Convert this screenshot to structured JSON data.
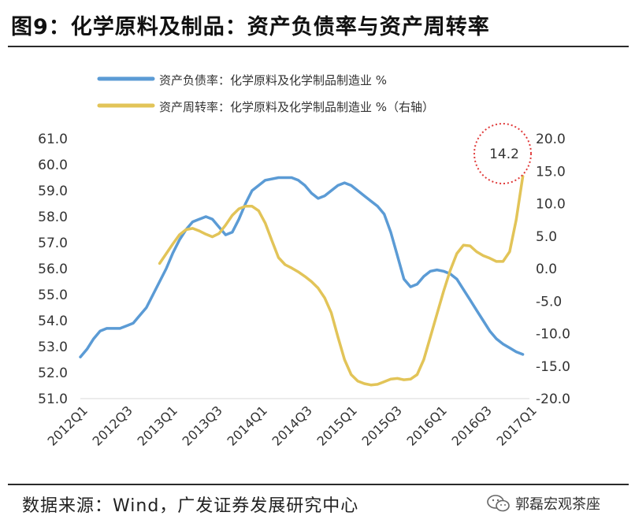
{
  "header": {
    "title": "图9：化学原料及制品：资产负债率与资产周转率"
  },
  "footer": {
    "source": "数据来源：Wind，广发证券发展研究中心",
    "watermark_text": "郭磊宏观茶座",
    "watermark_icon": "wechat-icon"
  },
  "chart_data": {
    "type": "line",
    "legend": [
      "资产负债率：化学原料及化学制品制造业 %",
      "资产周转率：化学原料及化学制品制造业 %（右轴）"
    ],
    "legend_position": "top-left",
    "annotation": "14.2",
    "colors": {
      "left_series": "#5b9bd5",
      "right_series": "#e2c458",
      "annotation_ring": "#e03a3a"
    },
    "x_ticks": [
      "2012Q1",
      "2012Q3",
      "2013Q1",
      "2013Q3",
      "2014Q1",
      "2014Q3",
      "2015Q1",
      "2015Q3",
      "2016Q1",
      "2016Q3",
      "2017Q1"
    ],
    "y_left": {
      "min": 51.0,
      "max": 61.0,
      "ticks": [
        "51.0",
        "52.0",
        "53.0",
        "54.0",
        "55.0",
        "56.0",
        "57.0",
        "58.0",
        "59.0",
        "60.0",
        "61.0"
      ]
    },
    "y_right": {
      "min": -20.0,
      "max": 20.0,
      "ticks": [
        "-20.0",
        "-15.0",
        "-10.0",
        "-5.0",
        "0.0",
        "5.0",
        "10.0",
        "15.0",
        "20.0"
      ]
    },
    "series": [
      {
        "name": "资产负债率：化学原料及化学制品制造业 %",
        "axis": "left",
        "points": [
          [
            0.0,
            52.6
          ],
          [
            0.25,
            52.9
          ],
          [
            0.5,
            53.3
          ],
          [
            0.75,
            53.6
          ],
          [
            1.0,
            53.7
          ],
          [
            1.25,
            53.7
          ],
          [
            1.5,
            53.7
          ],
          [
            1.75,
            53.8
          ],
          [
            2.0,
            53.9
          ],
          [
            2.25,
            54.2
          ],
          [
            2.5,
            54.5
          ],
          [
            2.75,
            55.0
          ],
          [
            3.0,
            55.5
          ],
          [
            3.25,
            56.0
          ],
          [
            3.5,
            56.6
          ],
          [
            3.75,
            57.1
          ],
          [
            4.0,
            57.5
          ],
          [
            4.25,
            57.8
          ],
          [
            4.5,
            57.9
          ],
          [
            4.75,
            58.0
          ],
          [
            5.0,
            57.9
          ],
          [
            5.25,
            57.6
          ],
          [
            5.5,
            57.3
          ],
          [
            5.75,
            57.4
          ],
          [
            6.0,
            57.9
          ],
          [
            6.25,
            58.5
          ],
          [
            6.5,
            59.0
          ],
          [
            6.75,
            59.2
          ],
          [
            7.0,
            59.4
          ],
          [
            7.5,
            59.5
          ],
          [
            8.0,
            59.5
          ],
          [
            8.25,
            59.4
          ],
          [
            8.5,
            59.2
          ],
          [
            8.75,
            58.9
          ],
          [
            9.0,
            58.7
          ],
          [
            9.25,
            58.8
          ],
          [
            9.5,
            59.0
          ],
          [
            9.75,
            59.2
          ],
          [
            10.0,
            59.3
          ],
          [
            10.25,
            59.2
          ],
          [
            10.5,
            59.0
          ],
          [
            10.75,
            58.8
          ],
          [
            11.0,
            58.6
          ],
          [
            11.25,
            58.4
          ],
          [
            11.5,
            58.1
          ],
          [
            11.75,
            57.4
          ],
          [
            12.0,
            56.5
          ],
          [
            12.25,
            55.6
          ],
          [
            12.5,
            55.3
          ],
          [
            12.75,
            55.4
          ],
          [
            13.0,
            55.7
          ],
          [
            13.25,
            55.9
          ],
          [
            13.5,
            55.95
          ],
          [
            13.75,
            55.9
          ],
          [
            14.0,
            55.8
          ],
          [
            14.25,
            55.6
          ],
          [
            14.5,
            55.2
          ],
          [
            14.75,
            54.8
          ],
          [
            15.0,
            54.4
          ],
          [
            15.25,
            54.0
          ],
          [
            15.5,
            53.6
          ],
          [
            15.75,
            53.3
          ],
          [
            16.0,
            53.1
          ],
          [
            16.25,
            52.95
          ],
          [
            16.5,
            52.8
          ],
          [
            16.75,
            52.7
          ]
        ]
      },
      {
        "name": "资产周转率：化学原料及化学制品制造业 %（右轴）",
        "axis": "right",
        "points": [
          [
            3.0,
            0.8
          ],
          [
            3.25,
            2.3
          ],
          [
            3.5,
            3.8
          ],
          [
            3.75,
            5.2
          ],
          [
            4.0,
            6.0
          ],
          [
            4.25,
            6.2
          ],
          [
            4.5,
            5.8
          ],
          [
            4.75,
            5.3
          ],
          [
            5.0,
            4.9
          ],
          [
            5.25,
            5.4
          ],
          [
            5.5,
            6.7
          ],
          [
            5.75,
            8.2
          ],
          [
            6.0,
            9.2
          ],
          [
            6.25,
            9.6
          ],
          [
            6.5,
            9.6
          ],
          [
            6.75,
            8.9
          ],
          [
            7.0,
            7.0
          ],
          [
            7.25,
            4.3
          ],
          [
            7.5,
            1.7
          ],
          [
            7.75,
            0.6
          ],
          [
            8.0,
            0.1
          ],
          [
            8.25,
            -0.5
          ],
          [
            8.5,
            -1.2
          ],
          [
            8.75,
            -2.0
          ],
          [
            9.0,
            -3.0
          ],
          [
            9.25,
            -4.5
          ],
          [
            9.5,
            -6.8
          ],
          [
            9.75,
            -10.5
          ],
          [
            10.0,
            -14.0
          ],
          [
            10.25,
            -16.3
          ],
          [
            10.5,
            -17.3
          ],
          [
            10.75,
            -17.7
          ],
          [
            11.0,
            -17.9
          ],
          [
            11.25,
            -17.8
          ],
          [
            11.5,
            -17.4
          ],
          [
            11.75,
            -17.0
          ],
          [
            12.0,
            -16.9
          ],
          [
            12.25,
            -17.1
          ],
          [
            12.5,
            -17.0
          ],
          [
            12.75,
            -16.3
          ],
          [
            13.0,
            -14.0
          ],
          [
            13.25,
            -10.5
          ],
          [
            13.5,
            -7.0
          ],
          [
            13.75,
            -3.5
          ],
          [
            14.0,
            -0.3
          ],
          [
            14.25,
            2.3
          ],
          [
            14.5,
            3.6
          ],
          [
            14.75,
            3.5
          ],
          [
            15.0,
            2.6
          ],
          [
            15.25,
            2.0
          ],
          [
            15.5,
            1.6
          ],
          [
            15.75,
            1.1
          ],
          [
            16.0,
            1.1
          ],
          [
            16.25,
            2.6
          ],
          [
            16.5,
            7.5
          ],
          [
            16.75,
            14.2
          ]
        ]
      }
    ]
  }
}
